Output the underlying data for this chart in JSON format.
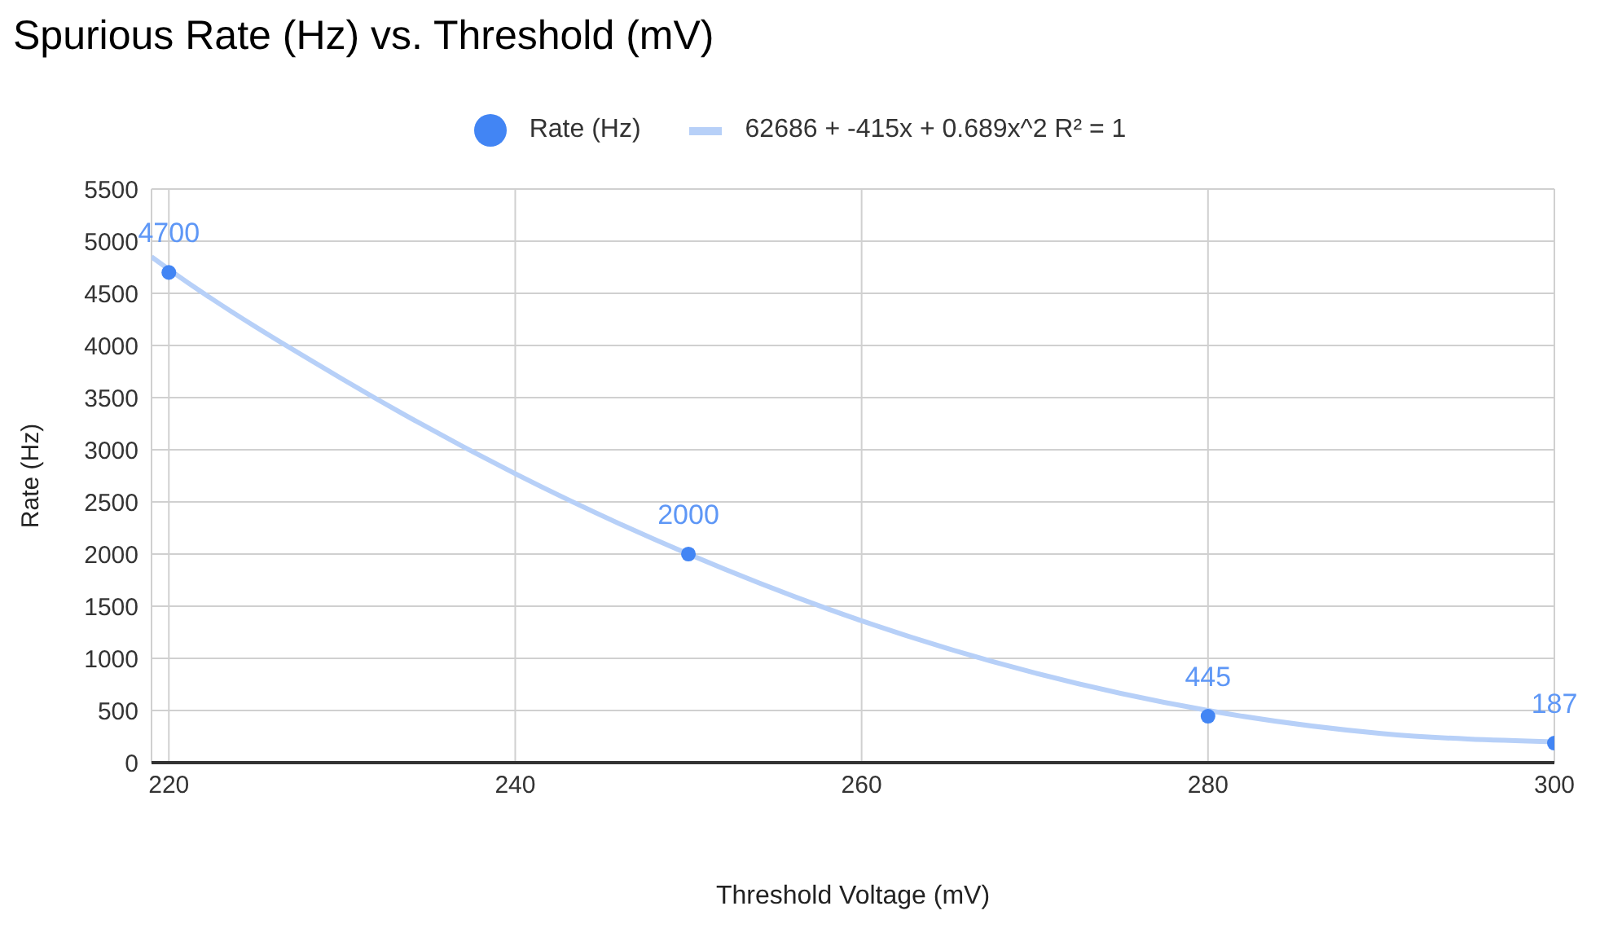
{
  "chart_data": {
    "type": "scatter",
    "title": "Spurious Rate (Hz) vs. Threshold (mV)",
    "xlabel": "Threshold Voltage (mV)",
    "ylabel": "Rate (Hz)",
    "x": [
      220,
      250,
      280,
      300
    ],
    "series": [
      {
        "name": "Rate (Hz)",
        "color": "#4285f4",
        "values": [
          4700,
          2000,
          445,
          187
        ],
        "value_labels": [
          "4700",
          "2000",
          "445",
          "187"
        ]
      },
      {
        "name": "62686 + -415x + 0.689x^2 R² = 1",
        "type": "line",
        "color": "#b7d0f8",
        "x": [
          219,
          220,
          230,
          240,
          250,
          260,
          270,
          280,
          290,
          300
        ],
        "values": [
          4850,
          4730,
          3680,
          2770,
          2000,
          1360,
          860,
          500,
          280,
          200
        ]
      }
    ],
    "xlim": [
      219,
      300
    ],
    "xticks": [
      220,
      240,
      260,
      280,
      300
    ],
    "ylim": [
      0,
      5500
    ],
    "yticks": [
      0,
      500,
      1000,
      1500,
      2000,
      2500,
      3000,
      3500,
      4000,
      4500,
      5000,
      5500
    ],
    "grid": true,
    "legend": "top"
  }
}
